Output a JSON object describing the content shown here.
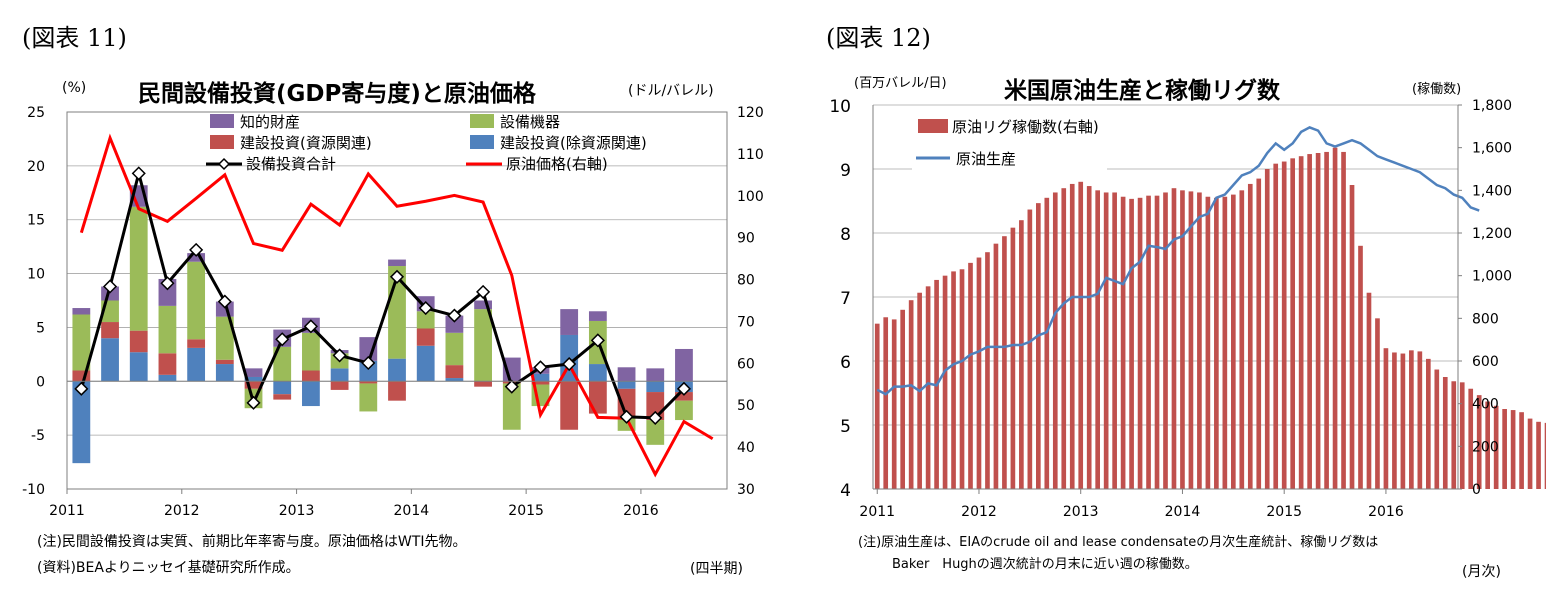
{
  "chart_data": [
    {
      "figure_label": "(図表 11)",
      "type": "bar",
      "title": "民間設備投資(GDP寄与度)と原油価格",
      "ylabel": "(%)",
      "y2label": "(ドル/バレル)",
      "xlabel": "(四半期)",
      "ylim": [
        -10,
        25
      ],
      "yticks": [
        -10,
        -5,
        0,
        5,
        10,
        15,
        20,
        25
      ],
      "y2lim": [
        30,
        120
      ],
      "y2ticks": [
        30,
        40,
        50,
        60,
        70,
        80,
        90,
        100,
        110,
        120
      ],
      "xtick_labels": [
        "2011",
        "2012",
        "2013",
        "2014",
        "2015",
        "2016"
      ],
      "grid": true,
      "legend_position": "top",
      "categories": [
        "2011Q1",
        "2011Q2",
        "2011Q3",
        "2011Q4",
        "2012Q1",
        "2012Q2",
        "2012Q3",
        "2012Q4",
        "2013Q1",
        "2013Q2",
        "2013Q3",
        "2013Q4",
        "2014Q1",
        "2014Q2",
        "2014Q3",
        "2014Q4",
        "2015Q1",
        "2015Q2",
        "2015Q3",
        "2015Q4",
        "2016Q1",
        "2016Q2",
        "2016Q3"
      ],
      "series": [
        {
          "name": "知的財産",
          "type": "stacked-bar",
          "color": "#8064a2",
          "values": [
            0.6,
            1.3,
            2.0,
            2.5,
            0.8,
            1.4,
            0.8,
            1.6,
            1.4,
            0.3,
            2.2,
            0.6,
            1.4,
            1.6,
            0.8,
            2.2,
            0.6,
            2.4,
            0.9,
            1.3,
            1.2,
            3.0,
            null
          ]
        },
        {
          "name": "設備機器",
          "type": "stacked-bar",
          "color": "#9bbb59",
          "values": [
            5.2,
            2.0,
            11.5,
            4.4,
            7.2,
            4.0,
            -1.8,
            3.2,
            3.5,
            1.4,
            -2.6,
            8.6,
            1.6,
            3.0,
            6.7,
            -4.3,
            -2.0,
            0.0,
            4.0,
            -1.3,
            -2.3,
            -1.8,
            null
          ]
        },
        {
          "name": "建設投資(資源関連)",
          "type": "stacked-bar",
          "color": "#c0504d",
          "values": [
            1.0,
            1.5,
            2.0,
            2.0,
            0.8,
            0.4,
            -0.7,
            -0.5,
            1.0,
            -0.8,
            -0.2,
            -1.8,
            1.6,
            1.2,
            -0.5,
            -0.2,
            -0.3,
            -4.5,
            -3.0,
            -2.6,
            -2.6,
            -0.8,
            null
          ]
        },
        {
          "name": "建設投資(除資源関連)",
          "type": "stacked-bar",
          "color": "#4f81bd",
          "values": [
            -7.6,
            4.0,
            2.7,
            0.6,
            3.1,
            1.6,
            0.4,
            -1.2,
            -2.3,
            1.2,
            1.9,
            2.1,
            3.3,
            0.3,
            0.0,
            0.0,
            0.7,
            4.3,
            1.6,
            -0.7,
            -1.0,
            -1.0,
            null
          ]
        },
        {
          "name": "設備投資合計",
          "type": "line-marker",
          "color": "#000000",
          "values": [
            -0.7,
            8.8,
            19.3,
            9.1,
            12.2,
            7.4,
            -2.0,
            3.9,
            5.1,
            2.4,
            1.7,
            9.7,
            6.8,
            6.1,
            8.3,
            -0.5,
            1.3,
            1.6,
            3.8,
            -3.3,
            -3.4,
            -0.7,
            null
          ]
        },
        {
          "name": "原油価格(右軸)",
          "type": "line",
          "axis": "right",
          "color": "#ff0000",
          "values": [
            91.2,
            113.8,
            96.9,
            93.9,
            99.4,
            105.0,
            88.6,
            87.0,
            98.0,
            93.0,
            105.2,
            97.5,
            98.7,
            100.1,
            98.5,
            81.0,
            47.7,
            59.7,
            47.1,
            46.9,
            33.5,
            46.1,
            42.0
          ]
        }
      ],
      "notes": [
        "(注)民間設備投資は実質、前期比年率寄与度。原油価格はWTI先物。",
        "(資料)BEAよりニッセイ基礎研究所作成。"
      ]
    },
    {
      "figure_label": "(図表 12)",
      "type": "bar",
      "title": "米国原油生産と稼働リグ数",
      "ylabel": "(百万バレル/日)",
      "y2label": "(稼働数)",
      "xlabel": "(月次)",
      "ylim": [
        4,
        10
      ],
      "yticks": [
        4,
        5,
        6,
        7,
        8,
        9,
        10
      ],
      "y2lim": [
        0,
        1800
      ],
      "y2ticks": [
        "0",
        "200",
        "400",
        "600",
        "800",
        "1,000",
        "1,200",
        "1,400",
        "1,600",
        "1,800"
      ],
      "xtick_labels": [
        "2011",
        "2012",
        "2013",
        "2014",
        "2015",
        "2016"
      ],
      "x_start": "2011-01",
      "grid": true,
      "legend_position": "top-left",
      "series": [
        {
          "name": "原油リグ稼働数(右軸)",
          "type": "bar",
          "axis": "right",
          "color": "#c0504d",
          "values": [
            775,
            805,
            795,
            840,
            885,
            920,
            950,
            980,
            1000,
            1020,
            1030,
            1060,
            1085,
            1110,
            1150,
            1185,
            1225,
            1260,
            1310,
            1340,
            1365,
            1390,
            1410,
            1430,
            1440,
            1420,
            1400,
            1390,
            1390,
            1370,
            1360,
            1365,
            1375,
            1375,
            1390,
            1410,
            1400,
            1395,
            1390,
            1370,
            1365,
            1370,
            1380,
            1400,
            1430,
            1455,
            1500,
            1525,
            1535,
            1550,
            1560,
            1570,
            1575,
            1580,
            1600,
            1580,
            1425,
            1140,
            920,
            800,
            660,
            640,
            635,
            650,
            645,
            610,
            560,
            525,
            505,
            500,
            470,
            440,
            410,
            390,
            375,
            370,
            360,
            330,
            315,
            310,
            320,
            340,
            355,
            415
          ]
        },
        {
          "name": "原油生産",
          "type": "line",
          "color": "#4f81bd",
          "values": [
            5.55,
            5.48,
            5.6,
            5.6,
            5.62,
            5.53,
            5.65,
            5.62,
            5.85,
            5.95,
            6.0,
            6.1,
            6.15,
            6.22,
            6.22,
            6.22,
            6.25,
            6.25,
            6.3,
            6.4,
            6.45,
            6.75,
            6.9,
            7.0,
            7.0,
            7.0,
            7.05,
            7.3,
            7.25,
            7.2,
            7.45,
            7.55,
            7.8,
            7.78,
            7.75,
            7.9,
            7.95,
            8.1,
            8.25,
            8.3,
            8.55,
            8.6,
            8.75,
            8.9,
            8.95,
            9.05,
            9.25,
            9.4,
            9.3,
            9.4,
            9.58,
            9.65,
            9.6,
            9.4,
            9.35,
            9.4,
            9.45,
            9.4,
            9.3,
            9.2,
            9.15,
            9.1,
            9.05,
            9.0,
            8.95,
            8.85,
            8.75,
            8.7,
            8.6,
            8.55,
            8.4,
            8.35
          ]
        }
      ],
      "notes": [
        "(注)原油生産は、EIAのcrude oil and lease condensateの月次生産統計、稼働リグ数は",
        "Baker　Hughの週次統計の月末に近い週の稼働数。"
      ]
    }
  ]
}
